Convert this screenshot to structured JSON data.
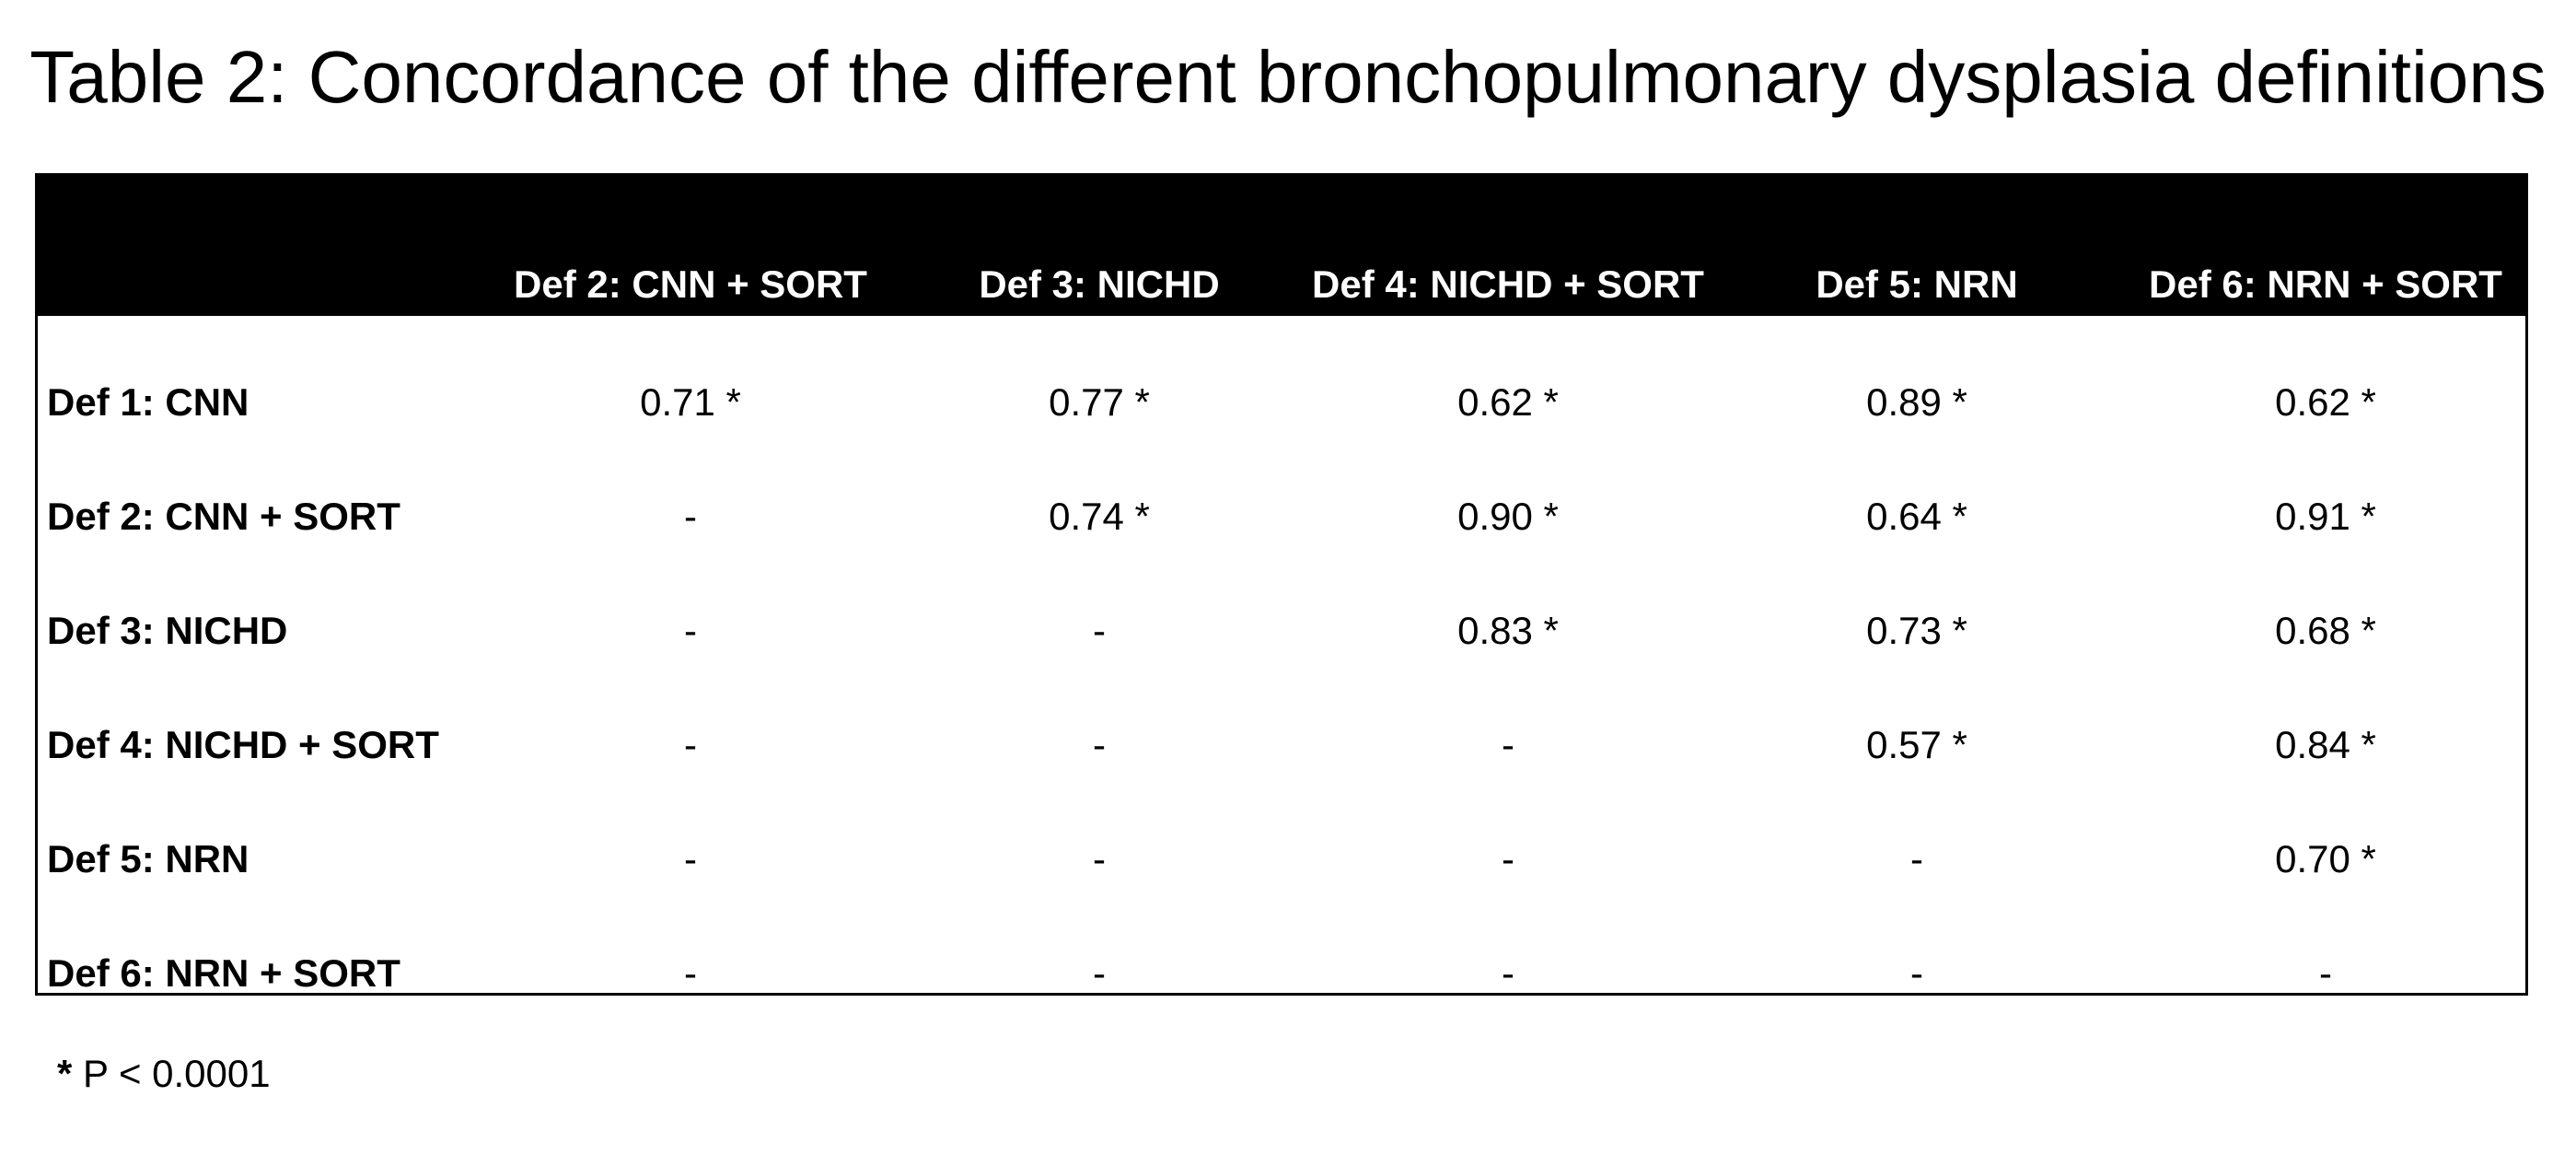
{
  "title": "Table 2: Concordance of the different bronchopulmonary dysplasia definitions",
  "table": {
    "column_headers": [
      "Def 2: CNN + SORT",
      "Def 3: NICHD",
      "Def 4: NICHD + SORT",
      "Def 5: NRN",
      "Def 6: NRN + SORT"
    ],
    "rows": [
      {
        "label": "Def 1: CNN",
        "cells": [
          "0.71 *",
          "0.77 *",
          "0.62 *",
          "0.89 *",
          "0.62 *"
        ]
      },
      {
        "label": "Def 2: CNN + SORT",
        "cells": [
          "-",
          "0.74 *",
          "0.90 *",
          "0.64 *",
          "0.91 *"
        ]
      },
      {
        "label": "Def 3: NICHD",
        "cells": [
          "-",
          "-",
          "0.83 *",
          "0.73 *",
          "0.68 *"
        ]
      },
      {
        "label": "Def 4: NICHD + SORT",
        "cells": [
          "-",
          "-",
          "-",
          "0.57 *",
          "0.84 *"
        ]
      },
      {
        "label": "Def 5: NRN",
        "cells": [
          "-",
          "-",
          "-",
          "-",
          "0.70 *"
        ]
      },
      {
        "label": "Def 6: NRN + SORT",
        "cells": [
          "-",
          "-",
          "-",
          "-",
          "-"
        ]
      }
    ]
  },
  "footnote": {
    "symbol": "*",
    "text": " P < 0.0001"
  }
}
